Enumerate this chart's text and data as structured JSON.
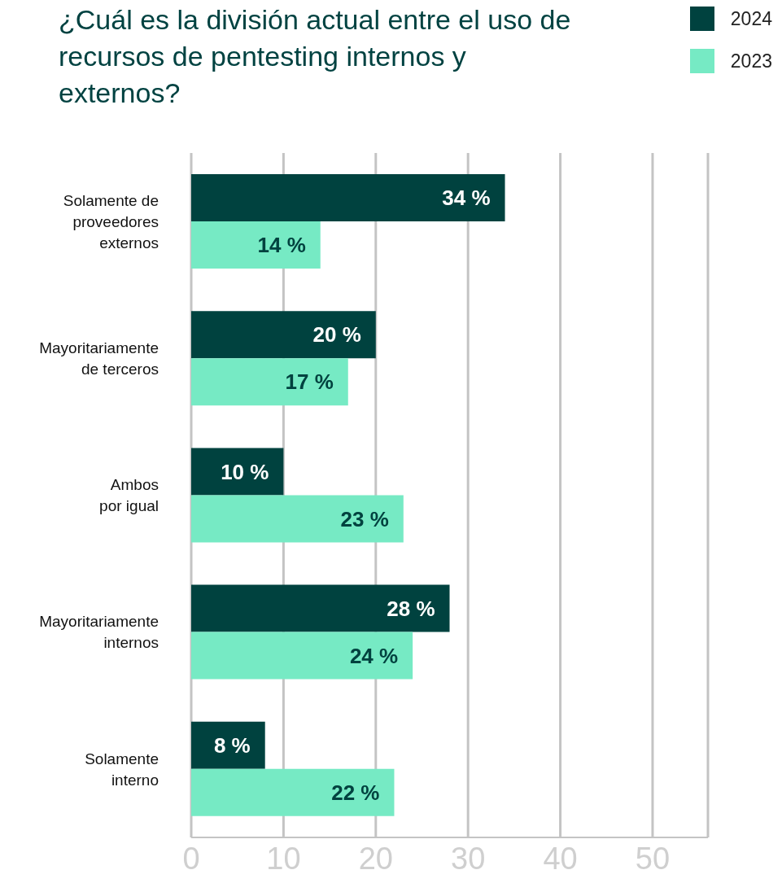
{
  "chart_data": {
    "type": "bar",
    "orientation": "horizontal",
    "title": "¿Cuál es la división actual entre el uso de recursos de pentesting internos y externos?",
    "categories": [
      "Solamente de\nproveedores\nexternos",
      "Mayoritariamente\nde terceros",
      "Ambos\npor igual",
      "Mayoritariamente\ninternos",
      "Solamente\ninterno"
    ],
    "series": [
      {
        "name": "2024",
        "color": "#00423f",
        "values": [
          34,
          20,
          10,
          28,
          8
        ],
        "value_labels": [
          "34 %",
          "20 %",
          "10 %",
          "28 %",
          "8 %"
        ]
      },
      {
        "name": "2023",
        "color": "#76eac4",
        "values": [
          14,
          17,
          23,
          24,
          22
        ],
        "value_labels": [
          "14 %",
          "17 %",
          "23 %",
          "24 %",
          "22 %"
        ]
      }
    ],
    "xlim": [
      0,
      56
    ],
    "xticks": [
      0,
      10,
      20,
      30,
      40,
      50
    ],
    "grid": "x",
    "legend": "top right"
  }
}
